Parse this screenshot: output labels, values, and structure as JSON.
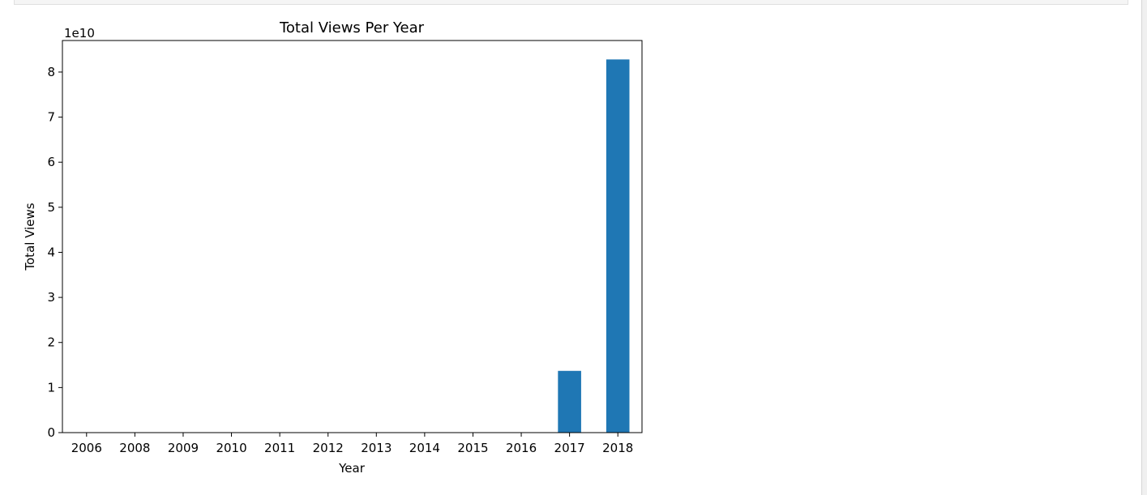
{
  "chart_data": {
    "type": "bar",
    "title": "Total Views Per Year",
    "xlabel": "Year",
    "ylabel": "Total Views",
    "offset_label": "1e10",
    "categories": [
      "2006",
      "2008",
      "2009",
      "2010",
      "2011",
      "2012",
      "2013",
      "2014",
      "2015",
      "2016",
      "2017",
      "2018"
    ],
    "values": [
      0,
      0,
      0,
      0,
      0,
      0,
      0,
      0,
      0,
      0,
      13700000000,
      82800000000
    ],
    "ylim": [
      0,
      87000000000
    ],
    "yticks": [
      0,
      1,
      2,
      3,
      4,
      5,
      6,
      7,
      8
    ],
    "ytick_scale": 10000000000,
    "bar_color": "#1f77b4",
    "grid": false,
    "legend": "none"
  }
}
